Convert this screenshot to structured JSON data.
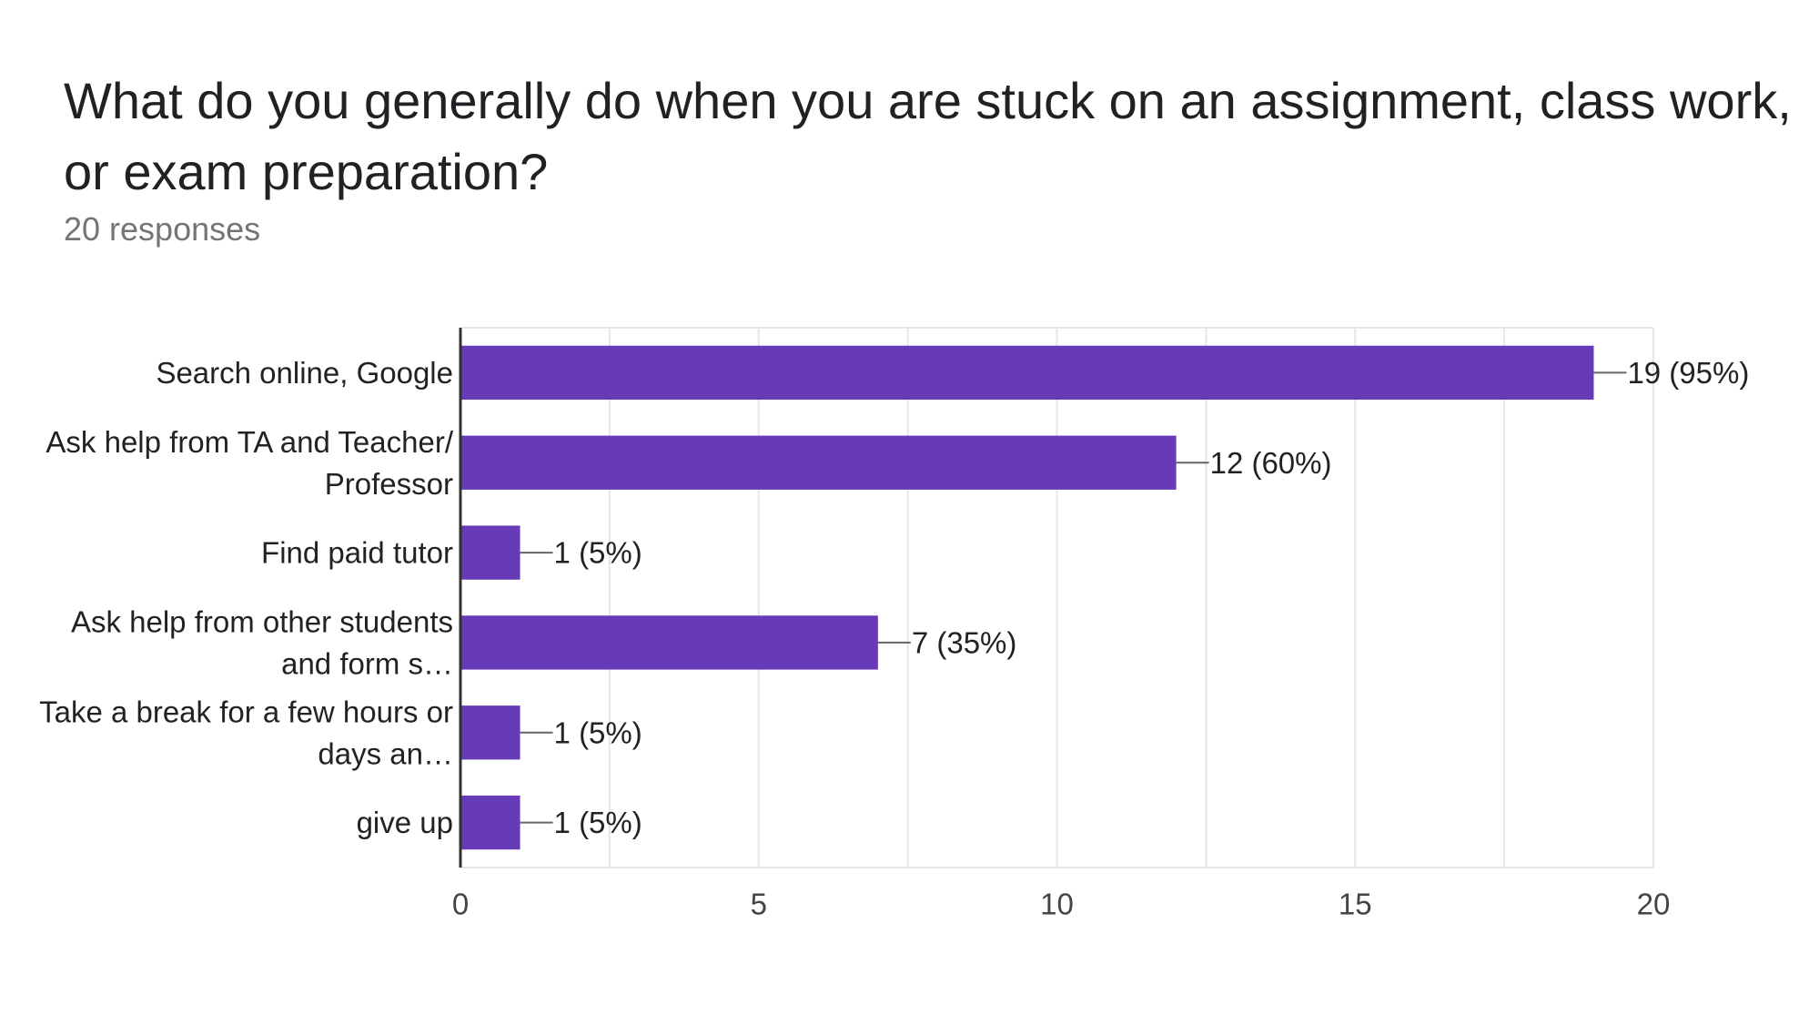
{
  "title": "What do you generally do when you are stuck on an assignment, class work, or exam preparation?",
  "subtitle": "20 responses",
  "colors": {
    "bar": "#673ab7",
    "grid": "#e6e6e6",
    "axis": "#333333",
    "leader": "#666666"
  },
  "chart_data": {
    "type": "bar",
    "orientation": "horizontal",
    "categories": [
      [
        "Search online, Google"
      ],
      [
        "Ask help from TA and Teacher/",
        "Professor"
      ],
      [
        "Find paid tutor"
      ],
      [
        "Ask help from other students",
        "and form s…"
      ],
      [
        "Take a break for a few hours or",
        "days an…"
      ],
      [
        "give up"
      ]
    ],
    "values": [
      19,
      12,
      1,
      7,
      1,
      1
    ],
    "data_labels": [
      "19 (95%)",
      "12 (60%)",
      "1 (5%)",
      "7 (35%)",
      "1 (5%)",
      "1 (5%)"
    ],
    "xlim": [
      0,
      20
    ],
    "xticks": [
      0,
      5,
      10,
      15,
      20
    ],
    "minor_grid_step": 2.5,
    "grid": true,
    "legend": "none"
  }
}
